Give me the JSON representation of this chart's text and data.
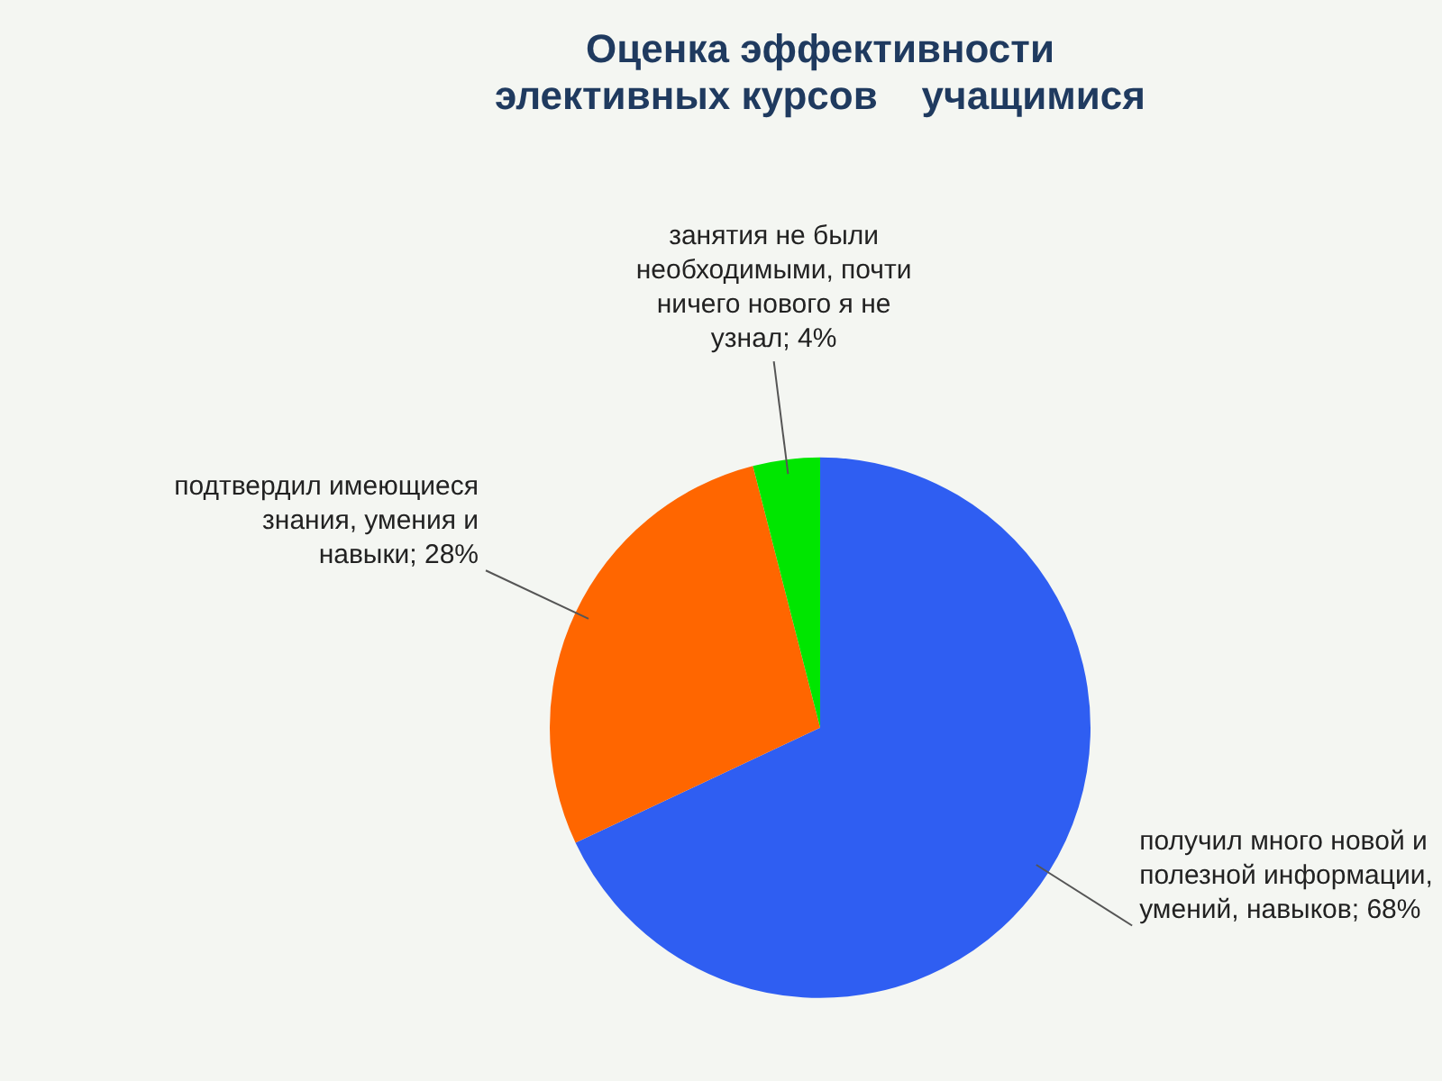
{
  "chart_data": {
    "type": "pie",
    "title": "Оценка эффективности\nэлективных курсов    учащимися",
    "categories": [
      "получил много новой и полезной информации, умений, навыков",
      "подтвердил имеющиеся знания, умения и навыки",
      "занятия не были необходимыми, почти ничего нового я не узнал"
    ],
    "values": [
      68,
      28,
      4
    ],
    "colors": [
      "#2f5ef2",
      "#ff6600",
      "#00e600"
    ],
    "value_labels": [
      "68%",
      "28%",
      "4%"
    ]
  }
}
